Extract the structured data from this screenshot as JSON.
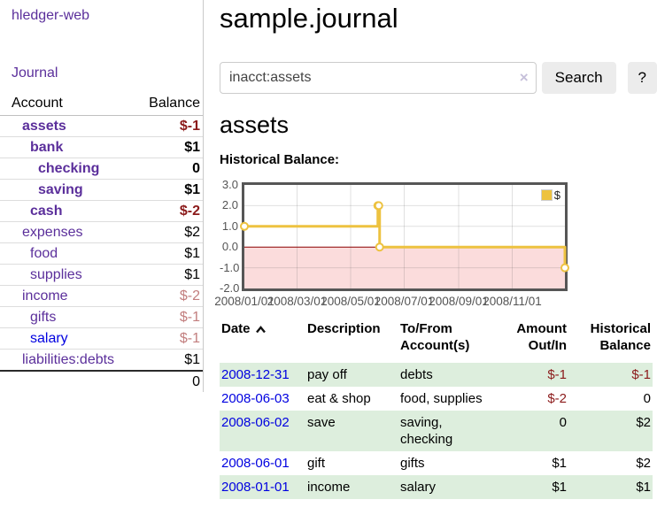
{
  "app": {
    "brand": "hledger-web",
    "nav": {
      "journal": "Journal"
    }
  },
  "colors": {
    "link_purple": "#5b2f9b",
    "link_blue": "#0000e0",
    "negative": "#8b1a1a",
    "muted_negative": "#c27e7e",
    "row_stripe_green": "#ddeedd",
    "chart_series_gold": "#edc240",
    "chart_negative_bg": "#fbdcdc",
    "chart_zero_line": "#8b0000",
    "chart_grid": "rgba(84,84,84,0.18)"
  },
  "sidebar": {
    "headers": {
      "account": "Account",
      "balance": "Balance"
    },
    "accounts": [
      {
        "name": "assets",
        "balance": "$-1",
        "depth": 1,
        "bold": true,
        "balance_style": "neg"
      },
      {
        "name": "bank",
        "balance": "$1",
        "depth": 2,
        "bold": true,
        "balance_style": ""
      },
      {
        "name": "checking",
        "balance": "0",
        "depth": 3,
        "bold": true,
        "balance_style": ""
      },
      {
        "name": "saving",
        "balance": "$1",
        "depth": 3,
        "bold": true,
        "balance_style": ""
      },
      {
        "name": "cash",
        "balance": "$-2",
        "depth": 2,
        "bold": true,
        "balance_style": "neg"
      },
      {
        "name": "expenses",
        "balance": "$2",
        "depth": 1,
        "bold": false,
        "balance_style": ""
      },
      {
        "name": "food",
        "balance": "$1",
        "depth": 2,
        "bold": false,
        "balance_style": ""
      },
      {
        "name": "supplies",
        "balance": "$1",
        "depth": 2,
        "bold": false,
        "balance_style": ""
      },
      {
        "name": "income",
        "balance": "$-2",
        "depth": 1,
        "bold": false,
        "balance_style": "mneg"
      },
      {
        "name": "gifts",
        "balance": "$-1",
        "depth": 2,
        "bold": false,
        "balance_style": "mneg"
      },
      {
        "name": "salary",
        "balance": "$-1",
        "depth": 2,
        "bold": false,
        "balance_style": "mneg",
        "link_style": "blue"
      },
      {
        "name": "liabilities:debts",
        "balance": "$1",
        "depth": 1,
        "bold": false,
        "balance_style": ""
      }
    ],
    "total": "0"
  },
  "main": {
    "title": "sample.journal",
    "search": {
      "value": "inacct:assets",
      "clear": "×",
      "submit": "Search",
      "help": "?"
    },
    "account_heading": "assets",
    "chart_heading": "Historical Balance:"
  },
  "chart_data": {
    "type": "line",
    "step": true,
    "title": "Historical Balance",
    "series": [
      {
        "name": "$",
        "color": "#edc240"
      }
    ],
    "x": [
      "2008-01-01",
      "2008-06-01",
      "2008-06-02",
      "2008-06-03",
      "2008-12-31"
    ],
    "y": [
      1,
      2,
      2,
      0,
      -1
    ],
    "x_ticks": [
      "2008/01/01",
      "2008/03/01",
      "2008/05/01",
      "2008/07/01",
      "2008/09/01",
      "2008/11/01"
    ],
    "y_ticks": [
      3.0,
      2.0,
      1.0,
      0.0,
      -1.0,
      -2.0
    ],
    "xlim": [
      "2008-01-01",
      "2008-12-31"
    ],
    "ylim": [
      -2,
      3
    ],
    "grid": true,
    "legend_position": "top-right",
    "negative_region_shaded": true
  },
  "register": {
    "headers": {
      "date": "Date",
      "description": "Description",
      "accounts": "To/From Account(s)",
      "amount": "Amount Out/In",
      "balance": "Historical Balance"
    },
    "rows": [
      {
        "date": "2008-12-31",
        "description": "pay off",
        "accounts": "debts",
        "amount": "$-1",
        "amount_negative": true,
        "balance": "$-1",
        "balance_negative": true
      },
      {
        "date": "2008-06-03",
        "description": "eat & shop",
        "accounts": "food, supplies",
        "amount": "$-2",
        "amount_negative": true,
        "balance": "0",
        "balance_negative": false
      },
      {
        "date": "2008-06-02",
        "description": "save",
        "accounts": "saving, checking",
        "amount": "0",
        "amount_negative": false,
        "balance": "$2",
        "balance_negative": false
      },
      {
        "date": "2008-06-01",
        "description": "gift",
        "accounts": "gifts",
        "amount": "$1",
        "amount_negative": false,
        "balance": "$2",
        "balance_negative": false
      },
      {
        "date": "2008-01-01",
        "description": "income",
        "accounts": "salary",
        "amount": "$1",
        "amount_negative": false,
        "balance": "$1",
        "balance_negative": false
      }
    ]
  }
}
